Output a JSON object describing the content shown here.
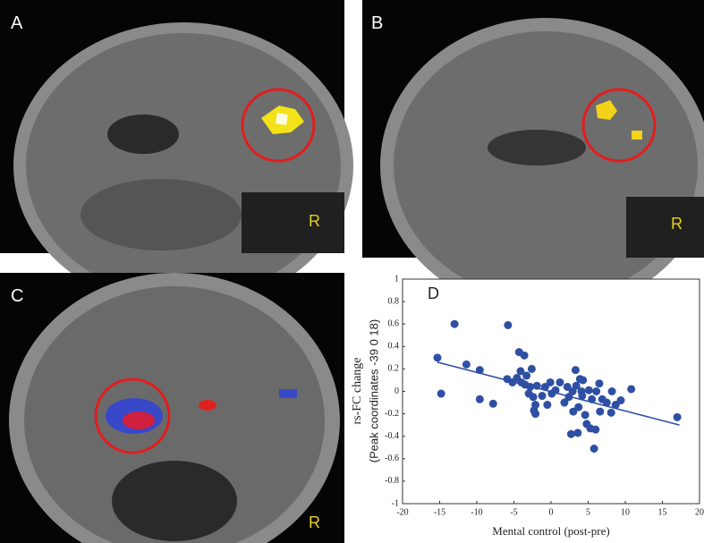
{
  "panels": [
    {
      "label": "A",
      "side_label": "R"
    },
    {
      "label": "B",
      "side_label": "R"
    },
    {
      "label": "C",
      "side_label": "R"
    }
  ],
  "chart_data": {
    "type": "scatter",
    "label": "D",
    "xlabel": "Mental control (post-pre)",
    "ylabel": [
      "rs-FC change",
      "(Peak coordinates -39 0 18)"
    ],
    "color": "#2e4fa3",
    "x": [
      -15.3,
      -14.8,
      -13,
      -11.4,
      -9.6,
      -9.6,
      -7.8,
      -5.9,
      -5.8,
      -5.2,
      -4.6,
      -4.3,
      -3.6,
      -4.1,
      -4,
      -3.5,
      -3.3,
      -3,
      -2.8,
      -2.6,
      -2.4,
      -2.3,
      -2.1,
      -2.1,
      -1.9,
      -1.2,
      -0.8,
      -0.5,
      -0.1,
      0.1,
      0.6,
      1.2,
      1.8,
      2.2,
      2.4,
      2.7,
      2.9,
      3.0,
      3.3,
      3.4,
      3.6,
      3.7,
      3.9,
      4.1,
      4.2,
      4.3,
      4.6,
      4.8,
      5.1,
      5.3,
      5.5,
      5.8,
      6.0,
      6.1,
      6.5,
      6.6,
      6.9,
      7.5,
      8.1,
      8.2,
      8.7,
      9.4,
      10.8,
      17
    ],
    "y": [
      0.3,
      -0.02,
      0.6,
      0.24,
      0.19,
      -0.07,
      -0.11,
      0.11,
      0.59,
      0.08,
      0.12,
      0.35,
      0.32,
      0.18,
      0.08,
      0.06,
      0.14,
      -0.02,
      0.04,
      0.2,
      -0.05,
      -0.17,
      -0.2,
      -0.12,
      0.05,
      -0.04,
      0.04,
      -0.12,
      0.08,
      -0.02,
      0.01,
      0.08,
      -0.1,
      0.04,
      -0.05,
      -0.38,
      0.0,
      -0.18,
      0.19,
      0.05,
      -0.37,
      -0.14,
      0.11,
      0.0,
      -0.04,
      0.1,
      -0.21,
      -0.29,
      0.01,
      -0.33,
      -0.07,
      -0.51,
      -0.34,
      0.0,
      0.07,
      -0.18,
      -0.07,
      -0.1,
      -0.19,
      0.0,
      -0.12,
      -0.08,
      0.02,
      -0.23
    ],
    "fit": {
      "x": [
        -15.3,
        17.3
      ],
      "y": [
        0.26,
        -0.3
      ]
    },
    "xlim": [
      -20,
      20
    ],
    "xticks": [
      -20,
      -15,
      -10,
      -5,
      0,
      5,
      10,
      15,
      20
    ],
    "ylim": [
      -1,
      1
    ],
    "yticks": [
      1,
      0.8,
      0.6,
      0.4,
      0.2,
      0,
      -0.2,
      -0.4,
      -0.6,
      -0.8,
      -1
    ]
  }
}
